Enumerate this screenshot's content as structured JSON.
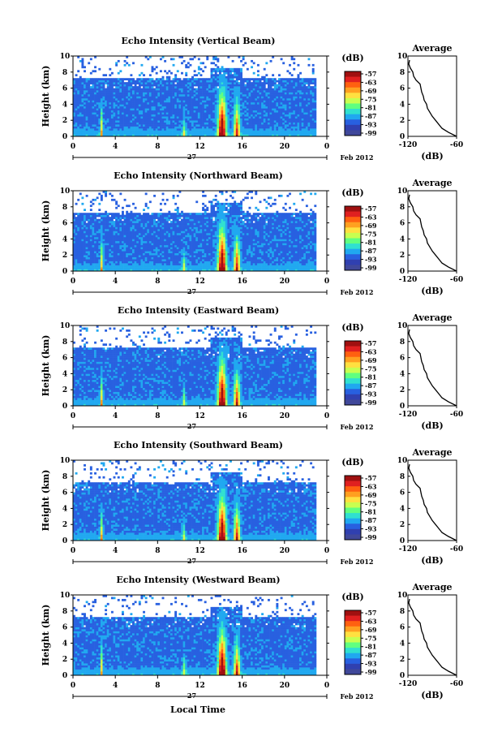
{
  "chart_data": {
    "type": "heatmap",
    "date_label": "Feb 2012",
    "day_label": "27",
    "xlabel": "Local Time",
    "ylabel": "Height (km)",
    "x_ticks": [
      "0",
      "4",
      "8",
      "12",
      "16",
      "20",
      "0"
    ],
    "y_ticks": [
      "0",
      "2",
      "4",
      "6",
      "8",
      "10"
    ],
    "xlim": [
      0,
      24
    ],
    "ylim": [
      0,
      10
    ],
    "colorbar": {
      "unit": "(dB)",
      "labels": [
        "-57",
        "-63",
        "-69",
        "-75",
        "-81",
        "-87",
        "-93",
        "-99"
      ],
      "colors": [
        "#a01010",
        "#e02020",
        "#ff6010",
        "#ffa020",
        "#ffe040",
        "#c8ff50",
        "#60ff80",
        "#30e0d0",
        "#20a8f0",
        "#2860e0",
        "#3040b0",
        "#40489a"
      ]
    },
    "average": {
      "title": "Average",
      "xlabel": "(dB)",
      "x_ticks": [
        "-120",
        "-60"
      ],
      "y_ticks": [
        "0",
        "2",
        "4",
        "6",
        "8",
        "10"
      ],
      "profile_height_km": [
        0,
        0.5,
        1,
        1.5,
        2,
        2.5,
        3,
        3.5,
        4,
        4.5,
        5,
        5.5,
        6,
        6.5,
        7,
        7.5,
        8,
        8.5,
        9,
        9.5
      ],
      "profile_db": [
        -60,
        -70,
        -78,
        -82,
        -86,
        -90,
        -93,
        -96,
        -97,
        -100,
        -101,
        -103,
        -104,
        -105,
        -110,
        -113,
        -114,
        -117,
        -119,
        -118
      ]
    },
    "panels": [
      {
        "title": "Echo Intensity (Vertical Beam)"
      },
      {
        "title": "Echo Intensity (Northward Beam)"
      },
      {
        "title": "Echo Intensity (Eastward Beam)"
      },
      {
        "title": "Echo Intensity (Southward Beam)"
      },
      {
        "title": "Echo Intensity (Westward Beam)"
      }
    ]
  }
}
